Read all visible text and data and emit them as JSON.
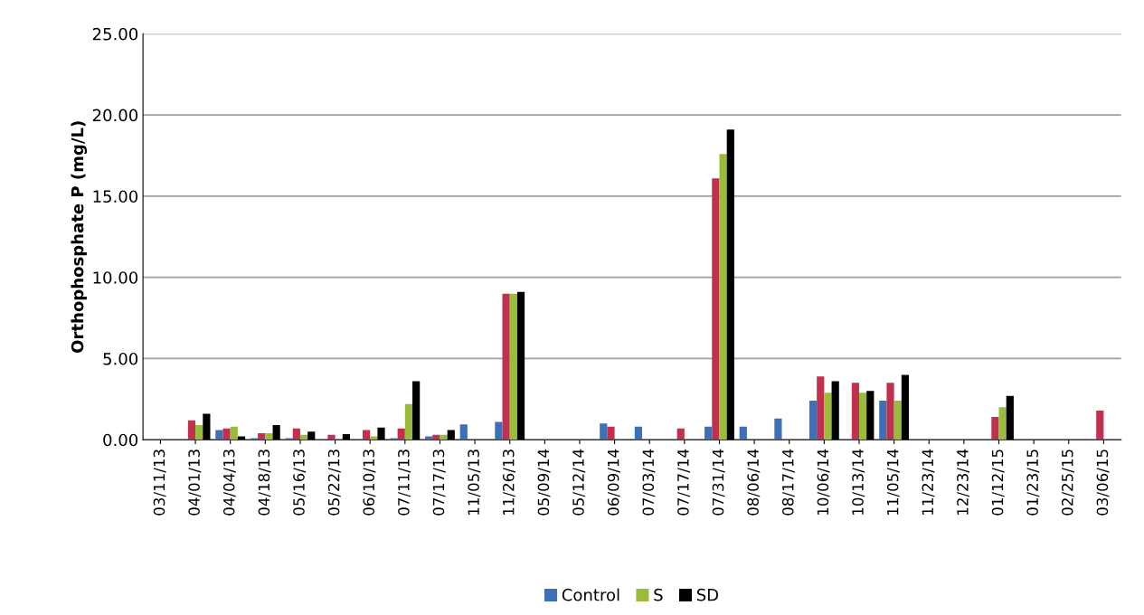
{
  "chart_data": {
    "type": "bar",
    "ylabel": "Orthophosphate P (mg/L)",
    "categories": [
      "03/11/13",
      "04/01/13",
      "04/04/13",
      "04/18/13",
      "05/16/13",
      "05/22/13",
      "06/10/13",
      "07/11/13",
      "07/17/13",
      "11/05/13",
      "11/26/13",
      "05/09/14",
      "05/12/14",
      "06/09/14",
      "07/03/14",
      "07/17/14",
      "07/31/14",
      "08/06/14",
      "08/17/14",
      "10/06/14",
      "10/13/14",
      "11/05/14",
      "11/23/14",
      "12/23/14",
      "01/12/15",
      "01/23/15",
      "02/25/15",
      "03/06/15"
    ],
    "series": [
      {
        "name": "Control",
        "color": "#3f6fb5",
        "values": [
          null,
          null,
          0.6,
          0.1,
          0.1,
          null,
          null,
          0.1,
          0.2,
          0.95,
          1.1,
          null,
          null,
          1.0,
          0.8,
          null,
          0.8,
          0.8,
          1.3,
          2.4,
          null,
          2.4,
          null,
          null,
          null,
          null,
          null,
          null
        ]
      },
      {
        "color": "#c0304f",
        "values": [
          null,
          1.2,
          0.7,
          0.4,
          0.7,
          0.3,
          0.6,
          0.7,
          0.3,
          null,
          9.0,
          null,
          null,
          0.8,
          null,
          0.7,
          16.1,
          null,
          null,
          3.9,
          3.5,
          3.5,
          null,
          null,
          1.4,
          null,
          null,
          1.8
        ]
      },
      {
        "name": "S",
        "color": "#9bbb3b",
        "values": [
          null,
          0.9,
          0.8,
          0.4,
          0.3,
          null,
          0.2,
          2.2,
          0.3,
          null,
          9.0,
          null,
          null,
          null,
          null,
          null,
          17.6,
          null,
          null,
          2.9,
          2.9,
          2.4,
          null,
          null,
          2.0,
          null,
          null,
          null
        ]
      },
      {
        "name": "SD",
        "color": "#000000",
        "values": [
          null,
          1.6,
          0.2,
          0.9,
          0.5,
          0.35,
          0.75,
          3.6,
          0.6,
          null,
          9.1,
          null,
          null,
          null,
          null,
          null,
          19.1,
          null,
          null,
          3.6,
          3.0,
          4.0,
          null,
          null,
          2.7,
          null,
          null,
          null
        ]
      }
    ],
    "ylim": [
      0,
      25
    ],
    "yticks": [
      {
        "value": 0,
        "label": "0.00"
      },
      {
        "value": 5,
        "label": "5.00"
      },
      {
        "value": 10,
        "label": "10.00"
      },
      {
        "value": 15,
        "label": "15.00"
      },
      {
        "value": 20,
        "label": "20.00"
      },
      {
        "value": 25,
        "label": "25.00"
      }
    ],
    "grid": "y",
    "legend": "bottom"
  }
}
